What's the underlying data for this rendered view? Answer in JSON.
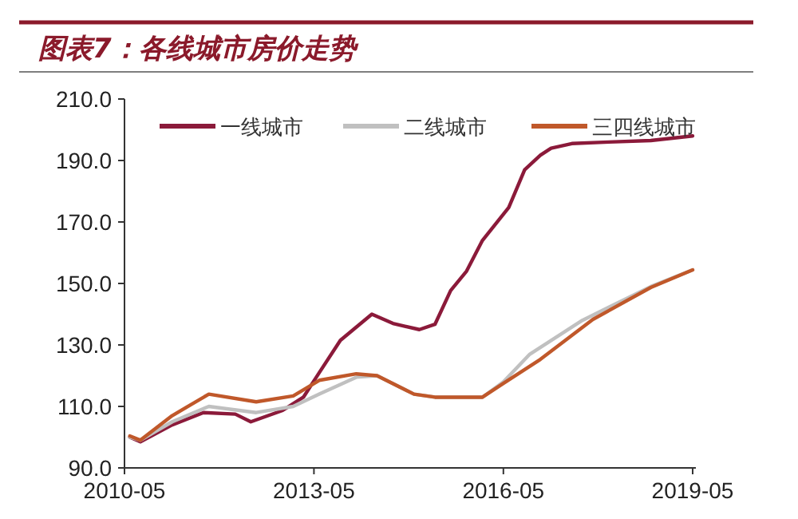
{
  "chart_data": {
    "type": "line",
    "title": "图表7：各线城市房价走势",
    "xlim": [
      "2010-05",
      "2019-05"
    ],
    "xticks": [
      "2010-05",
      "2013-05",
      "2016-05",
      "2019-05"
    ],
    "ylim": [
      90,
      210
    ],
    "yticks": [
      {
        "value": 90,
        "label": "90.0"
      },
      {
        "value": 110,
        "label": "110.0"
      },
      {
        "value": 130,
        "label": "130.0"
      },
      {
        "value": 150,
        "label": "150.0"
      },
      {
        "value": 170,
        "label": "170.0"
      },
      {
        "value": 190,
        "label": "190.0"
      },
      {
        "value": 210,
        "label": "210.0"
      }
    ],
    "legend": "top",
    "grid": false,
    "marker": "none",
    "line_style": "solid",
    "series": [
      {
        "name": "一线城市",
        "color": "#8b1a3a",
        "x": [
          "2010-06",
          "2010-08",
          "2011-02",
          "2011-08",
          "2012-02",
          "2012-05",
          "2012-11",
          "2013-03",
          "2013-06",
          "2013-10",
          "2014-04",
          "2014-08",
          "2015-01",
          "2015-04",
          "2015-07",
          "2015-10",
          "2016-01",
          "2016-06",
          "2016-09",
          "2016-12",
          "2017-02",
          "2017-06",
          "2018-01",
          "2018-09",
          "2019-05"
        ],
        "values": [
          100,
          98.5,
          104,
          108,
          107.5,
          105,
          108.7,
          113,
          121,
          131.5,
          140,
          137,
          135,
          136.7,
          147.7,
          154,
          164,
          174.7,
          187,
          191.7,
          194,
          195.5,
          196,
          196.5,
          198
        ]
      },
      {
        "name": "二线城市",
        "color": "#c0c0c0",
        "x": [
          "2010-06",
          "2010-08",
          "2011-02",
          "2011-09",
          "2012-06",
          "2013-01",
          "2013-06",
          "2014-01",
          "2014-05",
          "2014-12",
          "2015-04",
          "2016-01",
          "2016-05",
          "2016-10",
          "2017-08",
          "2018-09",
          "2019-05"
        ],
        "values": [
          100,
          99,
          105,
          110,
          108,
          110,
          114,
          119.5,
          120,
          114,
          113,
          113,
          118,
          127,
          138,
          149,
          154.4
        ]
      },
      {
        "name": "三四线城市",
        "color": "#c0582a",
        "x": [
          "2010-06",
          "2010-08",
          "2011-02",
          "2011-09",
          "2012-06",
          "2013-01",
          "2013-06",
          "2014-01",
          "2014-05",
          "2014-12",
          "2015-04",
          "2016-01",
          "2016-05",
          "2016-12",
          "2017-10",
          "2018-09",
          "2019-05"
        ],
        "values": [
          100.4,
          99,
          107,
          114,
          111.5,
          113.4,
          118.5,
          120.6,
          120,
          114,
          113,
          113,
          117.5,
          125.3,
          138.3,
          148.7,
          154.4
        ]
      }
    ]
  }
}
